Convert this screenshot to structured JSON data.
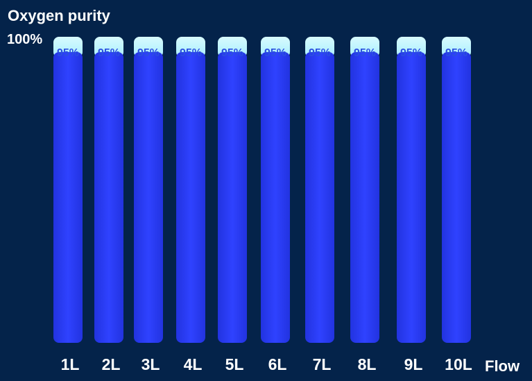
{
  "chart_data": {
    "type": "bar",
    "categories": [
      "1L",
      "2L",
      "3L",
      "4L",
      "5L",
      "6L",
      "7L",
      "8L",
      "9L",
      "10L"
    ],
    "series": [
      {
        "values": [
          95,
          95,
          95,
          95,
          95,
          95,
          95,
          95,
          95,
          95
        ]
      }
    ],
    "data_labels": [
      "95%",
      "95%",
      "95%",
      "95%",
      "95%",
      "95%",
      "95%",
      "95%",
      "95%",
      "95%"
    ],
    "ylabel": "Oxygen purity",
    "xlabel": "Flow",
    "y_max_label": "100%",
    "ylim": [
      0,
      100
    ],
    "grid": false,
    "colors": {
      "background": "#04234a",
      "bar": "#2b3cf6",
      "bar_cap": "#c9f7ff",
      "data_label": "#2b4fe0",
      "text": "#ffffff"
    }
  }
}
